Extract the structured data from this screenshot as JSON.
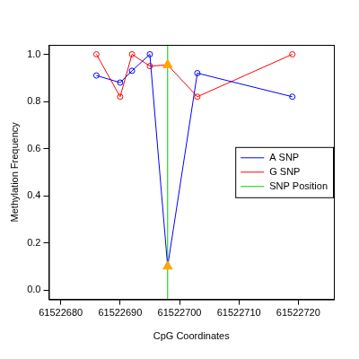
{
  "chart_data": {
    "type": "line",
    "x_label": "CpG Coordinates",
    "y_label": "Methylation Frequency",
    "x": [
      61522686,
      61522690,
      61522692,
      61522695,
      61522698,
      61522703,
      61522719
    ],
    "series": [
      {
        "name": "A SNP",
        "color": "#0000ff",
        "marker": "circle",
        "values": [
          0.91,
          0.88,
          0.93,
          1.0,
          0.1,
          0.92,
          0.82
        ]
      },
      {
        "name": "G SNP",
        "color": "#ff0000",
        "marker": "circle",
        "values": [
          1.0,
          0.82,
          1.0,
          0.95,
          0.955,
          0.82,
          1.0
        ]
      }
    ],
    "snp_position": {
      "name": "SNP Position",
      "x": 61522698,
      "color": "#00cc00",
      "marker": "triangle",
      "marker_color": "#ffa500"
    },
    "xlim": [
      61522678,
      61522726
    ],
    "xticks": [
      61522680,
      61522690,
      61522700,
      61522710,
      61522720
    ],
    "ylim": [
      -0.04,
      1.04
    ],
    "yticks": [
      {
        "value": 0,
        "label": "0.0"
      },
      {
        "value": 0.2,
        "label": "0.2"
      },
      {
        "value": 0.4,
        "label": "0.4"
      },
      {
        "value": 0.6,
        "label": "0.6"
      },
      {
        "value": 0.8,
        "label": "0.8"
      },
      {
        "value": 1.0,
        "label": "1.0"
      }
    ],
    "grid": false,
    "legend": "right"
  }
}
